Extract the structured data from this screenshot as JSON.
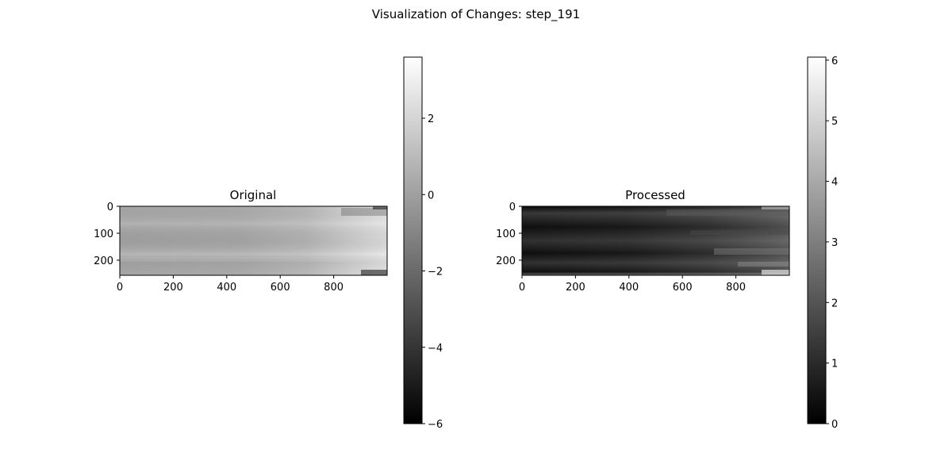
{
  "figure": {
    "suptitle": "Visualization of Changes: step_191"
  },
  "chart_data": [
    {
      "type": "heatmap",
      "title": "Original",
      "colormap": "gray",
      "image_shape": [
        256,
        1000
      ],
      "xlim": [
        0,
        1000
      ],
      "ylim": [
        256,
        0
      ],
      "xticks": [
        0,
        200,
        400,
        600,
        800
      ],
      "yticks": [
        0,
        100,
        200
      ],
      "colorbar": {
        "range": [
          -6.0,
          3.6
        ],
        "ticks": [
          2,
          0,
          -2,
          -4,
          -6
        ],
        "tick_labels": [
          "2",
          "0",
          "−2",
          "−4",
          "−6"
        ]
      }
    },
    {
      "type": "heatmap",
      "title": "Processed",
      "colormap": "gray",
      "image_shape": [
        256,
        1000
      ],
      "xlim": [
        0,
        1000
      ],
      "ylim": [
        256,
        0
      ],
      "xticks": [
        0,
        200,
        400,
        600,
        800
      ],
      "yticks": [
        0,
        100,
        200
      ],
      "colorbar": {
        "range": [
          0,
          6.05
        ],
        "ticks": [
          6,
          5,
          4,
          3,
          2,
          1,
          0
        ],
        "tick_labels": [
          "6",
          "5",
          "4",
          "3",
          "2",
          "1",
          "0"
        ]
      }
    }
  ]
}
